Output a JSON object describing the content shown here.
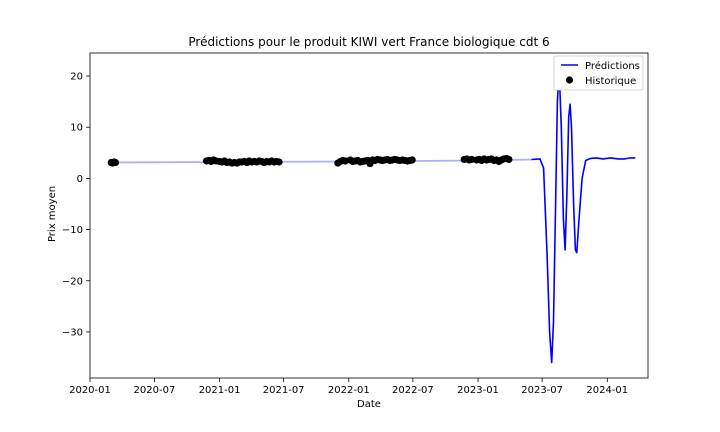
{
  "chart_data": {
    "type": "line",
    "title": "Prédictions pour le produit KIWI vert France biologique cdt 6",
    "xlabel": "Date",
    "ylabel": "Prix moyen",
    "xlim": [
      "2020-01-01",
      "2024-04-25"
    ],
    "ylim": [
      -39,
      24.5
    ],
    "x_ticks": [
      "2020-01",
      "2020-07",
      "2021-01",
      "2021-07",
      "2022-01",
      "2022-07",
      "2023-01",
      "2023-07",
      "2024-01"
    ],
    "y_ticks": [
      20,
      10,
      0,
      -10,
      -20,
      -30
    ],
    "grid": false,
    "legend_position": "top-right",
    "legend": [
      "Prédictions",
      "Historique"
    ],
    "colors": {
      "predictions": "#0000ff",
      "trend": "#aab0ff",
      "history": "#000000"
    },
    "series": [
      {
        "name": "Prédictions",
        "kind": "line",
        "points": [
          [
            "2020-03-01",
            3.1
          ],
          [
            "2021-01-01",
            3.2
          ],
          [
            "2022-01-01",
            3.3
          ],
          [
            "2023-01-01",
            3.5
          ],
          [
            "2023-06-01",
            3.7
          ],
          [
            "2023-06-25",
            3.8
          ],
          [
            "2023-07-05",
            2.0
          ],
          [
            "2023-07-15",
            -15
          ],
          [
            "2023-07-22",
            -30
          ],
          [
            "2023-07-28",
            -36
          ],
          [
            "2023-08-02",
            -28
          ],
          [
            "2023-08-08",
            -5
          ],
          [
            "2023-08-13",
            15
          ],
          [
            "2023-08-18",
            21.5
          ],
          [
            "2023-08-24",
            10
          ],
          [
            "2023-08-30",
            -8
          ],
          [
            "2023-09-04",
            -14
          ],
          [
            "2023-09-09",
            -3
          ],
          [
            "2023-09-14",
            12
          ],
          [
            "2023-09-18",
            14.5
          ],
          [
            "2023-09-22",
            10
          ],
          [
            "2023-09-28",
            -5
          ],
          [
            "2023-10-03",
            -14
          ],
          [
            "2023-10-07",
            -14.5
          ],
          [
            "2023-10-13",
            -8
          ],
          [
            "2023-10-22",
            0
          ],
          [
            "2023-11-01",
            3.5
          ],
          [
            "2023-11-15",
            3.9
          ],
          [
            "2023-12-01",
            4.0
          ],
          [
            "2023-12-20",
            3.8
          ],
          [
            "2024-01-10",
            4.0
          ],
          [
            "2024-02-01",
            3.8
          ],
          [
            "2024-02-20",
            3.8
          ],
          [
            "2024-03-05",
            4.0
          ],
          [
            "2024-03-20",
            4.0
          ]
        ]
      },
      {
        "name": "Historique",
        "kind": "scatter",
        "points": [
          [
            "2020-03-01",
            3.1
          ],
          [
            "2020-03-05",
            3.0
          ],
          [
            "2020-03-09",
            3.2
          ],
          [
            "2020-03-13",
            3.1
          ],
          [
            "2020-11-25",
            3.4
          ],
          [
            "2020-12-02",
            3.5
          ],
          [
            "2020-12-08",
            3.3
          ],
          [
            "2020-12-15",
            3.6
          ],
          [
            "2020-12-22",
            3.4
          ],
          [
            "2021-01-01",
            3.3
          ],
          [
            "2021-01-08",
            3.2
          ],
          [
            "2021-01-15",
            3.4
          ],
          [
            "2021-01-22",
            3.1
          ],
          [
            "2021-01-29",
            3.2
          ],
          [
            "2021-02-05",
            3.0
          ],
          [
            "2021-02-12",
            3.1
          ],
          [
            "2021-02-19",
            3.0
          ],
          [
            "2021-02-26",
            3.2
          ],
          [
            "2021-03-05",
            3.2
          ],
          [
            "2021-03-12",
            3.3
          ],
          [
            "2021-03-19",
            3.1
          ],
          [
            "2021-03-26",
            3.4
          ],
          [
            "2021-04-02",
            3.2
          ],
          [
            "2021-04-09",
            3.3
          ],
          [
            "2021-04-16",
            3.2
          ],
          [
            "2021-04-23",
            3.4
          ],
          [
            "2021-04-30",
            3.3
          ],
          [
            "2021-05-07",
            3.1
          ],
          [
            "2021-05-14",
            3.3
          ],
          [
            "2021-05-21",
            3.2
          ],
          [
            "2021-05-28",
            3.4
          ],
          [
            "2021-06-04",
            3.2
          ],
          [
            "2021-06-11",
            3.3
          ],
          [
            "2021-06-18",
            3.2
          ],
          [
            "2021-12-01",
            3.0
          ],
          [
            "2021-12-08",
            3.3
          ],
          [
            "2021-12-15",
            3.5
          ],
          [
            "2021-12-22",
            3.4
          ],
          [
            "2022-01-05",
            3.6
          ],
          [
            "2022-01-12",
            3.3
          ],
          [
            "2022-01-19",
            3.4
          ],
          [
            "2022-01-26",
            3.5
          ],
          [
            "2022-02-02",
            3.2
          ],
          [
            "2022-02-09",
            3.3
          ],
          [
            "2022-02-16",
            3.4
          ],
          [
            "2022-02-23",
            3.5
          ],
          [
            "2022-03-02",
            2.9
          ],
          [
            "2022-03-09",
            3.6
          ],
          [
            "2022-03-16",
            3.5
          ],
          [
            "2022-03-23",
            3.7
          ],
          [
            "2022-03-30",
            3.6
          ],
          [
            "2022-04-06",
            3.5
          ],
          [
            "2022-04-13",
            3.6
          ],
          [
            "2022-04-20",
            3.7
          ],
          [
            "2022-04-27",
            3.5
          ],
          [
            "2022-05-04",
            3.6
          ],
          [
            "2022-05-11",
            3.7
          ],
          [
            "2022-05-18",
            3.6
          ],
          [
            "2022-05-25",
            3.5
          ],
          [
            "2022-06-01",
            3.6
          ],
          [
            "2022-06-08",
            3.5
          ],
          [
            "2022-06-15",
            3.4
          ],
          [
            "2022-06-22",
            3.5
          ],
          [
            "2022-06-29",
            3.6
          ],
          [
            "2022-11-23",
            3.7
          ],
          [
            "2022-11-30",
            3.8
          ],
          [
            "2022-12-07",
            3.6
          ],
          [
            "2022-12-14",
            3.7
          ],
          [
            "2022-12-28",
            3.6
          ],
          [
            "2023-01-04",
            3.7
          ],
          [
            "2023-01-11",
            3.5
          ],
          [
            "2023-01-18",
            3.8
          ],
          [
            "2023-01-25",
            3.6
          ],
          [
            "2023-02-01",
            3.7
          ],
          [
            "2023-02-08",
            3.8
          ],
          [
            "2023-02-15",
            3.5
          ],
          [
            "2023-02-22",
            3.6
          ],
          [
            "2023-03-01",
            3.3
          ],
          [
            "2023-03-08",
            3.6
          ],
          [
            "2023-03-15",
            3.8
          ],
          [
            "2023-03-22",
            3.9
          ],
          [
            "2023-03-29",
            3.7
          ]
        ]
      }
    ]
  }
}
